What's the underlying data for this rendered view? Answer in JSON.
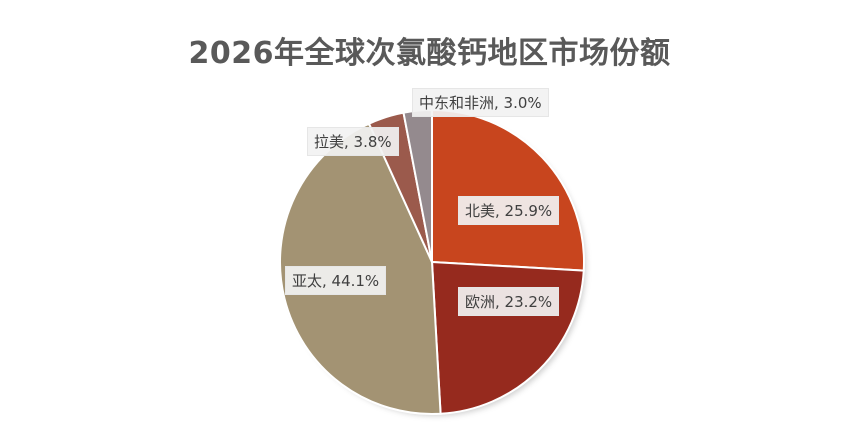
{
  "chart_data": {
    "type": "pie",
    "title": "2026年全球次氯酸钙地区市场份额",
    "categories": [
      "北美",
      "欧洲",
      "亚太",
      "拉美",
      "中东和非洲"
    ],
    "values": [
      25.9,
      23.2,
      44.1,
      3.8,
      3.0
    ],
    "labels": [
      "北美, 25.9%",
      "欧洲, 23.2%",
      "亚太, 44.1%",
      "拉美, 3.8%",
      "中东和非洲, 3.0%"
    ],
    "colors": [
      "#c8451e",
      "#962a1e",
      "#a39373",
      "#9b5a4c",
      "#948a8e"
    ],
    "start_angle": "12 o'clock, clockwise"
  }
}
